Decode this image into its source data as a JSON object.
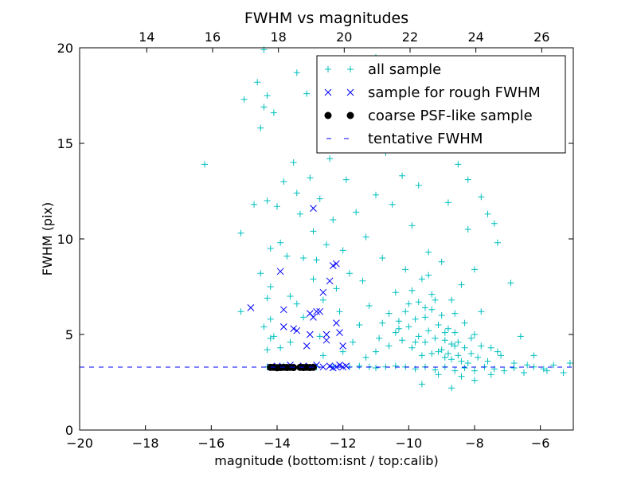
{
  "chart_data": {
    "type": "scatter",
    "title": "FWHM vs magnitudes",
    "xlabel": "magnitude (bottom:isnt / top:calib)",
    "ylabel": "FWHM (pix)",
    "xlim": [
      -20,
      -5
    ],
    "ylim": [
      0,
      20
    ],
    "x_ticks": [
      -20,
      -18,
      -16,
      -14,
      -12,
      -10,
      -8,
      -6
    ],
    "x_tick_labels": [
      "−20",
      "−18",
      "−16",
      "−14",
      "−12",
      "−10",
      "−8",
      "−6"
    ],
    "y_ticks": [
      0,
      5,
      10,
      15,
      20
    ],
    "y_tick_labels": [
      "0",
      "5",
      "10",
      "15",
      "20"
    ],
    "top_axis": {
      "offset": 31.96,
      "ticks": [
        14,
        16,
        18,
        20,
        22,
        24,
        26
      ],
      "tick_labels": [
        "14",
        "16",
        "18",
        "20",
        "22",
        "24",
        "26"
      ]
    },
    "grid": false,
    "legend_position": "top-right",
    "colors": {
      "all": "#00bfbf",
      "rough": "#0000ff",
      "psf": "#000000",
      "fwhm_line": "#0000ff"
    },
    "tentative_fwhm": 3.29,
    "series": [
      {
        "name": "all sample",
        "marker": "+",
        "points": [
          [
            -16.2,
            13.9
          ],
          [
            -15.1,
            10.3
          ],
          [
            -15.0,
            17.3
          ],
          [
            -15.1,
            6.2
          ],
          [
            -14.7,
            11.8
          ],
          [
            -14.6,
            18.2
          ],
          [
            -14.5,
            15.8
          ],
          [
            -14.4,
            16.9
          ],
          [
            -14.3,
            12.0
          ],
          [
            -14.5,
            8.2
          ],
          [
            -14.2,
            7.5
          ],
          [
            -14.3,
            17.5
          ],
          [
            -14.1,
            16.6
          ],
          [
            -14.2,
            9.5
          ],
          [
            -14.3,
            6.9
          ],
          [
            -14.4,
            5.4
          ],
          [
            -14.2,
            4.8
          ],
          [
            -14.3,
            4.2
          ],
          [
            -14.1,
            4.9
          ],
          [
            -14.2,
            5.8
          ],
          [
            -14.0,
            11.7
          ],
          [
            -13.9,
            9.8
          ],
          [
            -13.8,
            13.0
          ],
          [
            -13.7,
            9.1
          ],
          [
            -13.6,
            7.0
          ],
          [
            -13.5,
            14.0
          ],
          [
            -13.4,
            12.4
          ],
          [
            -13.3,
            11.3
          ],
          [
            -13.2,
            9.0
          ],
          [
            -13.1,
            17.6
          ],
          [
            -13.0,
            13.2
          ],
          [
            -12.9,
            10.4
          ],
          [
            -12.8,
            8.9
          ],
          [
            -12.7,
            12.1
          ],
          [
            -12.6,
            6.8
          ],
          [
            -12.5,
            9.7
          ],
          [
            -12.4,
            14.2
          ],
          [
            -12.3,
            11.0
          ],
          [
            -12.2,
            7.4
          ],
          [
            -12.1,
            6.2
          ],
          [
            -12.0,
            9.4
          ],
          [
            -11.9,
            13.1
          ],
          [
            -11.8,
            8.2
          ],
          [
            -11.6,
            11.4
          ],
          [
            -11.5,
            5.5
          ],
          [
            -11.4,
            7.8
          ],
          [
            -11.3,
            10.1
          ],
          [
            -11.2,
            6.5
          ],
          [
            -11.0,
            12.3
          ],
          [
            -10.9,
            4.8
          ],
          [
            -10.8,
            9.0
          ],
          [
            -10.7,
            14.5
          ],
          [
            -10.6,
            6.1
          ],
          [
            -10.5,
            11.8
          ],
          [
            -10.4,
            7.2
          ],
          [
            -10.3,
            5.3
          ],
          [
            -10.2,
            13.3
          ],
          [
            -10.1,
            8.4
          ],
          [
            -10.0,
            6.6
          ],
          [
            -9.9,
            10.7
          ],
          [
            -9.8,
            4.6
          ],
          [
            -9.7,
            12.8
          ],
          [
            -9.6,
            7.9
          ],
          [
            -9.5,
            5.9
          ],
          [
            -9.4,
            9.3
          ],
          [
            -9.3,
            6.3
          ],
          [
            -9.2,
            14.7
          ],
          [
            -9.1,
            4.1
          ],
          [
            -9.0,
            8.8
          ],
          [
            -8.9,
            5.1
          ],
          [
            -8.8,
            11.9
          ],
          [
            -8.7,
            6.8
          ],
          [
            -8.6,
            4.4
          ],
          [
            -8.5,
            13.9
          ],
          [
            -8.4,
            7.6
          ],
          [
            -8.3,
            5.6
          ],
          [
            -8.2,
            10.5
          ],
          [
            -8.1,
            4.0
          ],
          [
            -8.0,
            8.4
          ],
          [
            -7.9,
            3.8
          ],
          [
            -7.8,
            6.2
          ],
          [
            -7.6,
            11.3
          ],
          [
            -7.5,
            4.3
          ],
          [
            -7.3,
            9.8
          ],
          [
            -7.2,
            3.9
          ],
          [
            -6.9,
            7.7
          ],
          [
            -6.8,
            3.5
          ],
          [
            -6.6,
            4.9
          ],
          [
            -6.4,
            3.4
          ],
          [
            -6.2,
            3.9
          ],
          [
            -5.9,
            3.2
          ],
          [
            -5.6,
            3.4
          ],
          [
            -5.3,
            3.0
          ],
          [
            -5.1,
            3.5
          ],
          [
            -11.0,
            19.5
          ],
          [
            -10.5,
            18.2
          ],
          [
            -10.1,
            16.8
          ],
          [
            -9.6,
            17.5
          ],
          [
            -9.1,
            15.9
          ],
          [
            -8.6,
            16.5
          ],
          [
            -11.8,
            15.2
          ],
          [
            -12.4,
            16.4
          ],
          [
            -13.4,
            18.7
          ],
          [
            -14.4,
            19.9
          ],
          [
            -8.2,
            13.1
          ],
          [
            -7.8,
            12.2
          ],
          [
            -7.4,
            10.8
          ],
          [
            -10.4,
            5.1
          ],
          [
            -10.2,
            4.7
          ],
          [
            -10.0,
            5.4
          ],
          [
            -9.9,
            4.3
          ],
          [
            -9.8,
            5.8
          ],
          [
            -9.7,
            4.9
          ],
          [
            -9.6,
            3.9
          ],
          [
            -9.5,
            4.6
          ],
          [
            -9.5,
            6.4
          ],
          [
            -9.4,
            5.2
          ],
          [
            -9.3,
            4.0
          ],
          [
            -9.3,
            7.1
          ],
          [
            -9.2,
            4.8
          ],
          [
            -9.1,
            5.5
          ],
          [
            -9.0,
            4.2
          ],
          [
            -9.0,
            6.0
          ],
          [
            -8.9,
            3.8
          ],
          [
            -8.9,
            4.7
          ],
          [
            -8.8,
            5.3
          ],
          [
            -8.8,
            4.0
          ],
          [
            -8.7,
            3.7
          ],
          [
            -8.7,
            4.5
          ],
          [
            -8.6,
            5.1
          ],
          [
            -8.5,
            3.9
          ],
          [
            -8.5,
            4.6
          ],
          [
            -8.4,
            3.6
          ],
          [
            -8.3,
            4.3
          ],
          [
            -8.2,
            3.5
          ],
          [
            -8.1,
            4.8
          ],
          [
            -9.7,
            6.7
          ],
          [
            -9.9,
            7.3
          ],
          [
            -10.1,
            6.2
          ],
          [
            -10.3,
            5.7
          ],
          [
            -10.6,
            4.4
          ],
          [
            -10.8,
            5.6
          ],
          [
            -11.0,
            4.1
          ],
          [
            -9.4,
            8.1
          ],
          [
            -9.2,
            6.8
          ],
          [
            -8.6,
            6.1
          ],
          [
            -8.0,
            5.0
          ],
          [
            -7.8,
            4.4
          ],
          [
            -7.6,
            3.6
          ],
          [
            -7.3,
            4.1
          ],
          [
            -9.6,
            2.4
          ],
          [
            -8.7,
            2.2
          ],
          [
            -8.4,
            2.8
          ],
          [
            -9.1,
            2.9
          ],
          [
            -8.0,
            2.6
          ],
          [
            -7.5,
            2.9
          ],
          [
            -14.3,
            3.3
          ],
          [
            -13.8,
            3.35
          ],
          [
            -13.3,
            3.3
          ],
          [
            -12.8,
            3.3
          ],
          [
            -12.3,
            3.3
          ],
          [
            -11.8,
            3.3
          ],
          [
            -11.5,
            3.35
          ],
          [
            -11.2,
            3.3
          ],
          [
            -11.0,
            3.25
          ],
          [
            -10.7,
            3.3
          ],
          [
            -10.4,
            3.35
          ],
          [
            -10.1,
            3.3
          ],
          [
            -9.8,
            3.2
          ],
          [
            -9.5,
            3.3
          ],
          [
            -9.2,
            3.15
          ],
          [
            -8.9,
            3.3
          ],
          [
            -8.6,
            3.1
          ],
          [
            -8.3,
            3.25
          ],
          [
            -8.0,
            3.1
          ],
          [
            -7.7,
            3.3
          ],
          [
            -7.4,
            3.2
          ],
          [
            -7.1,
            3.1
          ],
          [
            -6.8,
            3.25
          ],
          [
            -6.5,
            3.0
          ],
          [
            -6.2,
            3.3
          ],
          [
            -5.8,
            3.1
          ],
          [
            -13.6,
            4.6
          ],
          [
            -13.2,
            5.9
          ],
          [
            -12.7,
            4.9
          ],
          [
            -12.0,
            4.1
          ],
          [
            -11.7,
            4.6
          ],
          [
            -11.3,
            3.8
          ],
          [
            -13.9,
            4.3
          ],
          [
            -13.4,
            6.6
          ],
          [
            -12.9,
            7.9
          ],
          [
            -12.6,
            3.9
          ]
        ]
      },
      {
        "name": "sample for rough FWHM",
        "marker": "x",
        "points": [
          [
            -14.8,
            6.4
          ],
          [
            -13.9,
            8.3
          ],
          [
            -13.8,
            6.3
          ],
          [
            -13.8,
            5.4
          ],
          [
            -13.5,
            5.3
          ],
          [
            -13.4,
            5.2
          ],
          [
            -13.1,
            4.4
          ],
          [
            -13.0,
            6.1
          ],
          [
            -13.0,
            5.0
          ],
          [
            -12.9,
            11.6
          ],
          [
            -12.9,
            5.9
          ],
          [
            -12.8,
            6.2
          ],
          [
            -12.7,
            6.2
          ],
          [
            -12.6,
            7.2
          ],
          [
            -12.5,
            5.0
          ],
          [
            -12.5,
            4.7
          ],
          [
            -12.4,
            7.8
          ],
          [
            -12.3,
            8.6
          ],
          [
            -12.2,
            8.7
          ],
          [
            -12.2,
            5.6
          ],
          [
            -12.1,
            5.1
          ],
          [
            -12.0,
            4.4
          ],
          [
            -14.2,
            3.3
          ],
          [
            -14.0,
            3.35
          ],
          [
            -13.8,
            3.3
          ],
          [
            -13.6,
            3.4
          ],
          [
            -13.4,
            3.3
          ],
          [
            -13.2,
            3.35
          ],
          [
            -13.0,
            3.3
          ],
          [
            -12.8,
            3.4
          ],
          [
            -12.6,
            3.3
          ],
          [
            -12.4,
            3.35
          ],
          [
            -12.3,
            3.25
          ],
          [
            -12.2,
            3.3
          ],
          [
            -12.1,
            3.4
          ],
          [
            -12.0,
            3.3
          ],
          [
            -11.9,
            3.35
          ]
        ]
      },
      {
        "name": "coarse PSF-like sample",
        "marker": "o",
        "points": [
          [
            -14.2,
            3.28
          ],
          [
            -14.1,
            3.28
          ],
          [
            -14.0,
            3.26
          ],
          [
            -13.9,
            3.27
          ],
          [
            -13.8,
            3.28
          ],
          [
            -13.7,
            3.27
          ],
          [
            -13.6,
            3.28
          ],
          [
            -13.5,
            3.27
          ],
          [
            -13.3,
            3.28
          ],
          [
            -13.2,
            3.27
          ],
          [
            -13.1,
            3.28
          ],
          [
            -13.0,
            3.27
          ],
          [
            -12.9,
            3.28
          ]
        ]
      },
      {
        "name": "tentative FWHM",
        "marker": "--",
        "points": []
      }
    ]
  }
}
